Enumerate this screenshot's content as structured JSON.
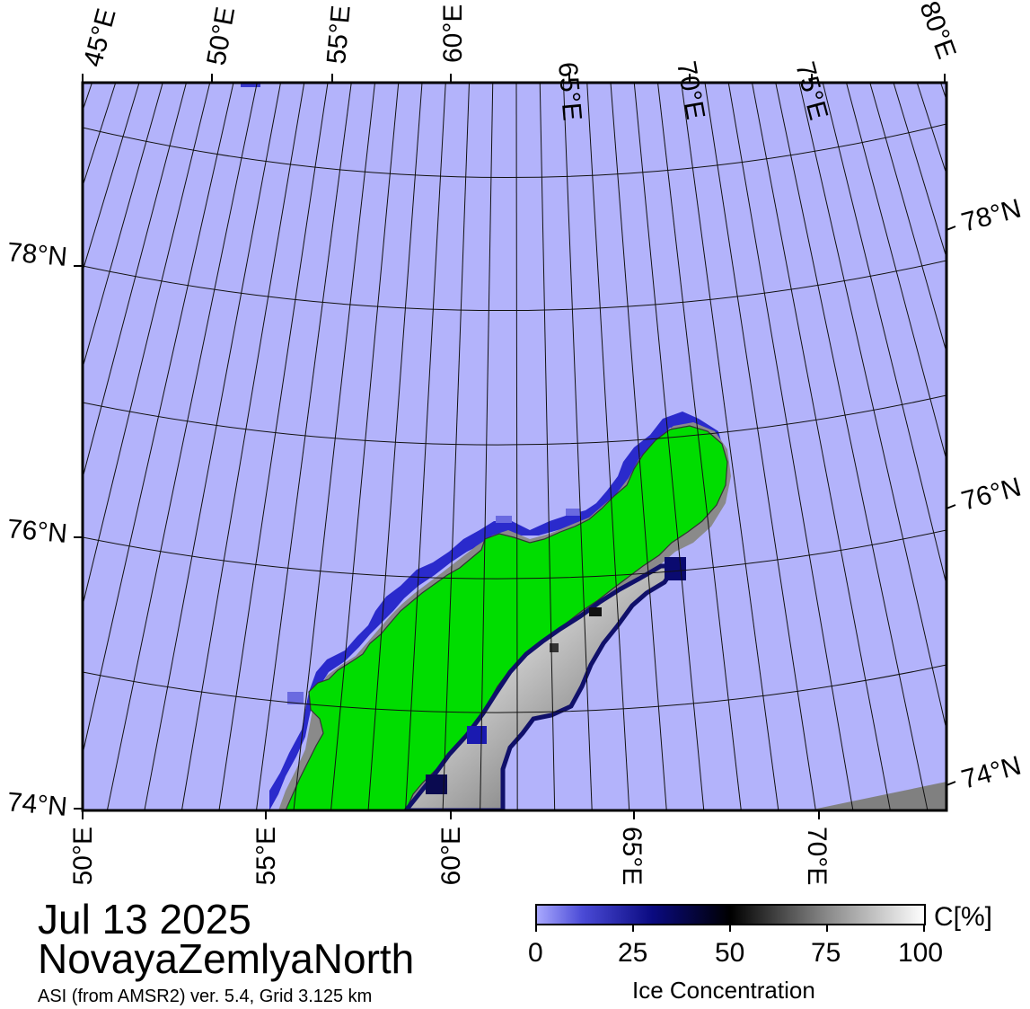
{
  "header": {
    "date": "Jul 13 2025",
    "region": "NovayaZemlyaNorth",
    "product": "ASI (from AMSR2) ver. 5.4,  Grid 3.125 km"
  },
  "map": {
    "top_lon_labels": [
      "45°E",
      "50°E",
      "55°E",
      "60°E",
      "65°E",
      "70°E",
      "75°E",
      "80°E"
    ],
    "bottom_lon_labels": [
      "50°E",
      "55°E",
      "60°E",
      "65°E",
      "70°E"
    ],
    "left_lat_labels": [
      "78°N",
      "76°N",
      "74°N"
    ],
    "right_lat_labels": [
      "78°N",
      "76°N",
      "74°N"
    ],
    "colors": {
      "open_water": "#b3b3fb",
      "land": "#00dd00",
      "coast_gray": "#888888",
      "ice_low": "#5050d8",
      "ice_mid": "#000055",
      "ice_high": "#ffffff"
    }
  },
  "colorbar": {
    "ticks": [
      "0",
      "25",
      "50",
      "75",
      "100"
    ],
    "unit": "C[%]",
    "title": "Ice Concentration"
  }
}
